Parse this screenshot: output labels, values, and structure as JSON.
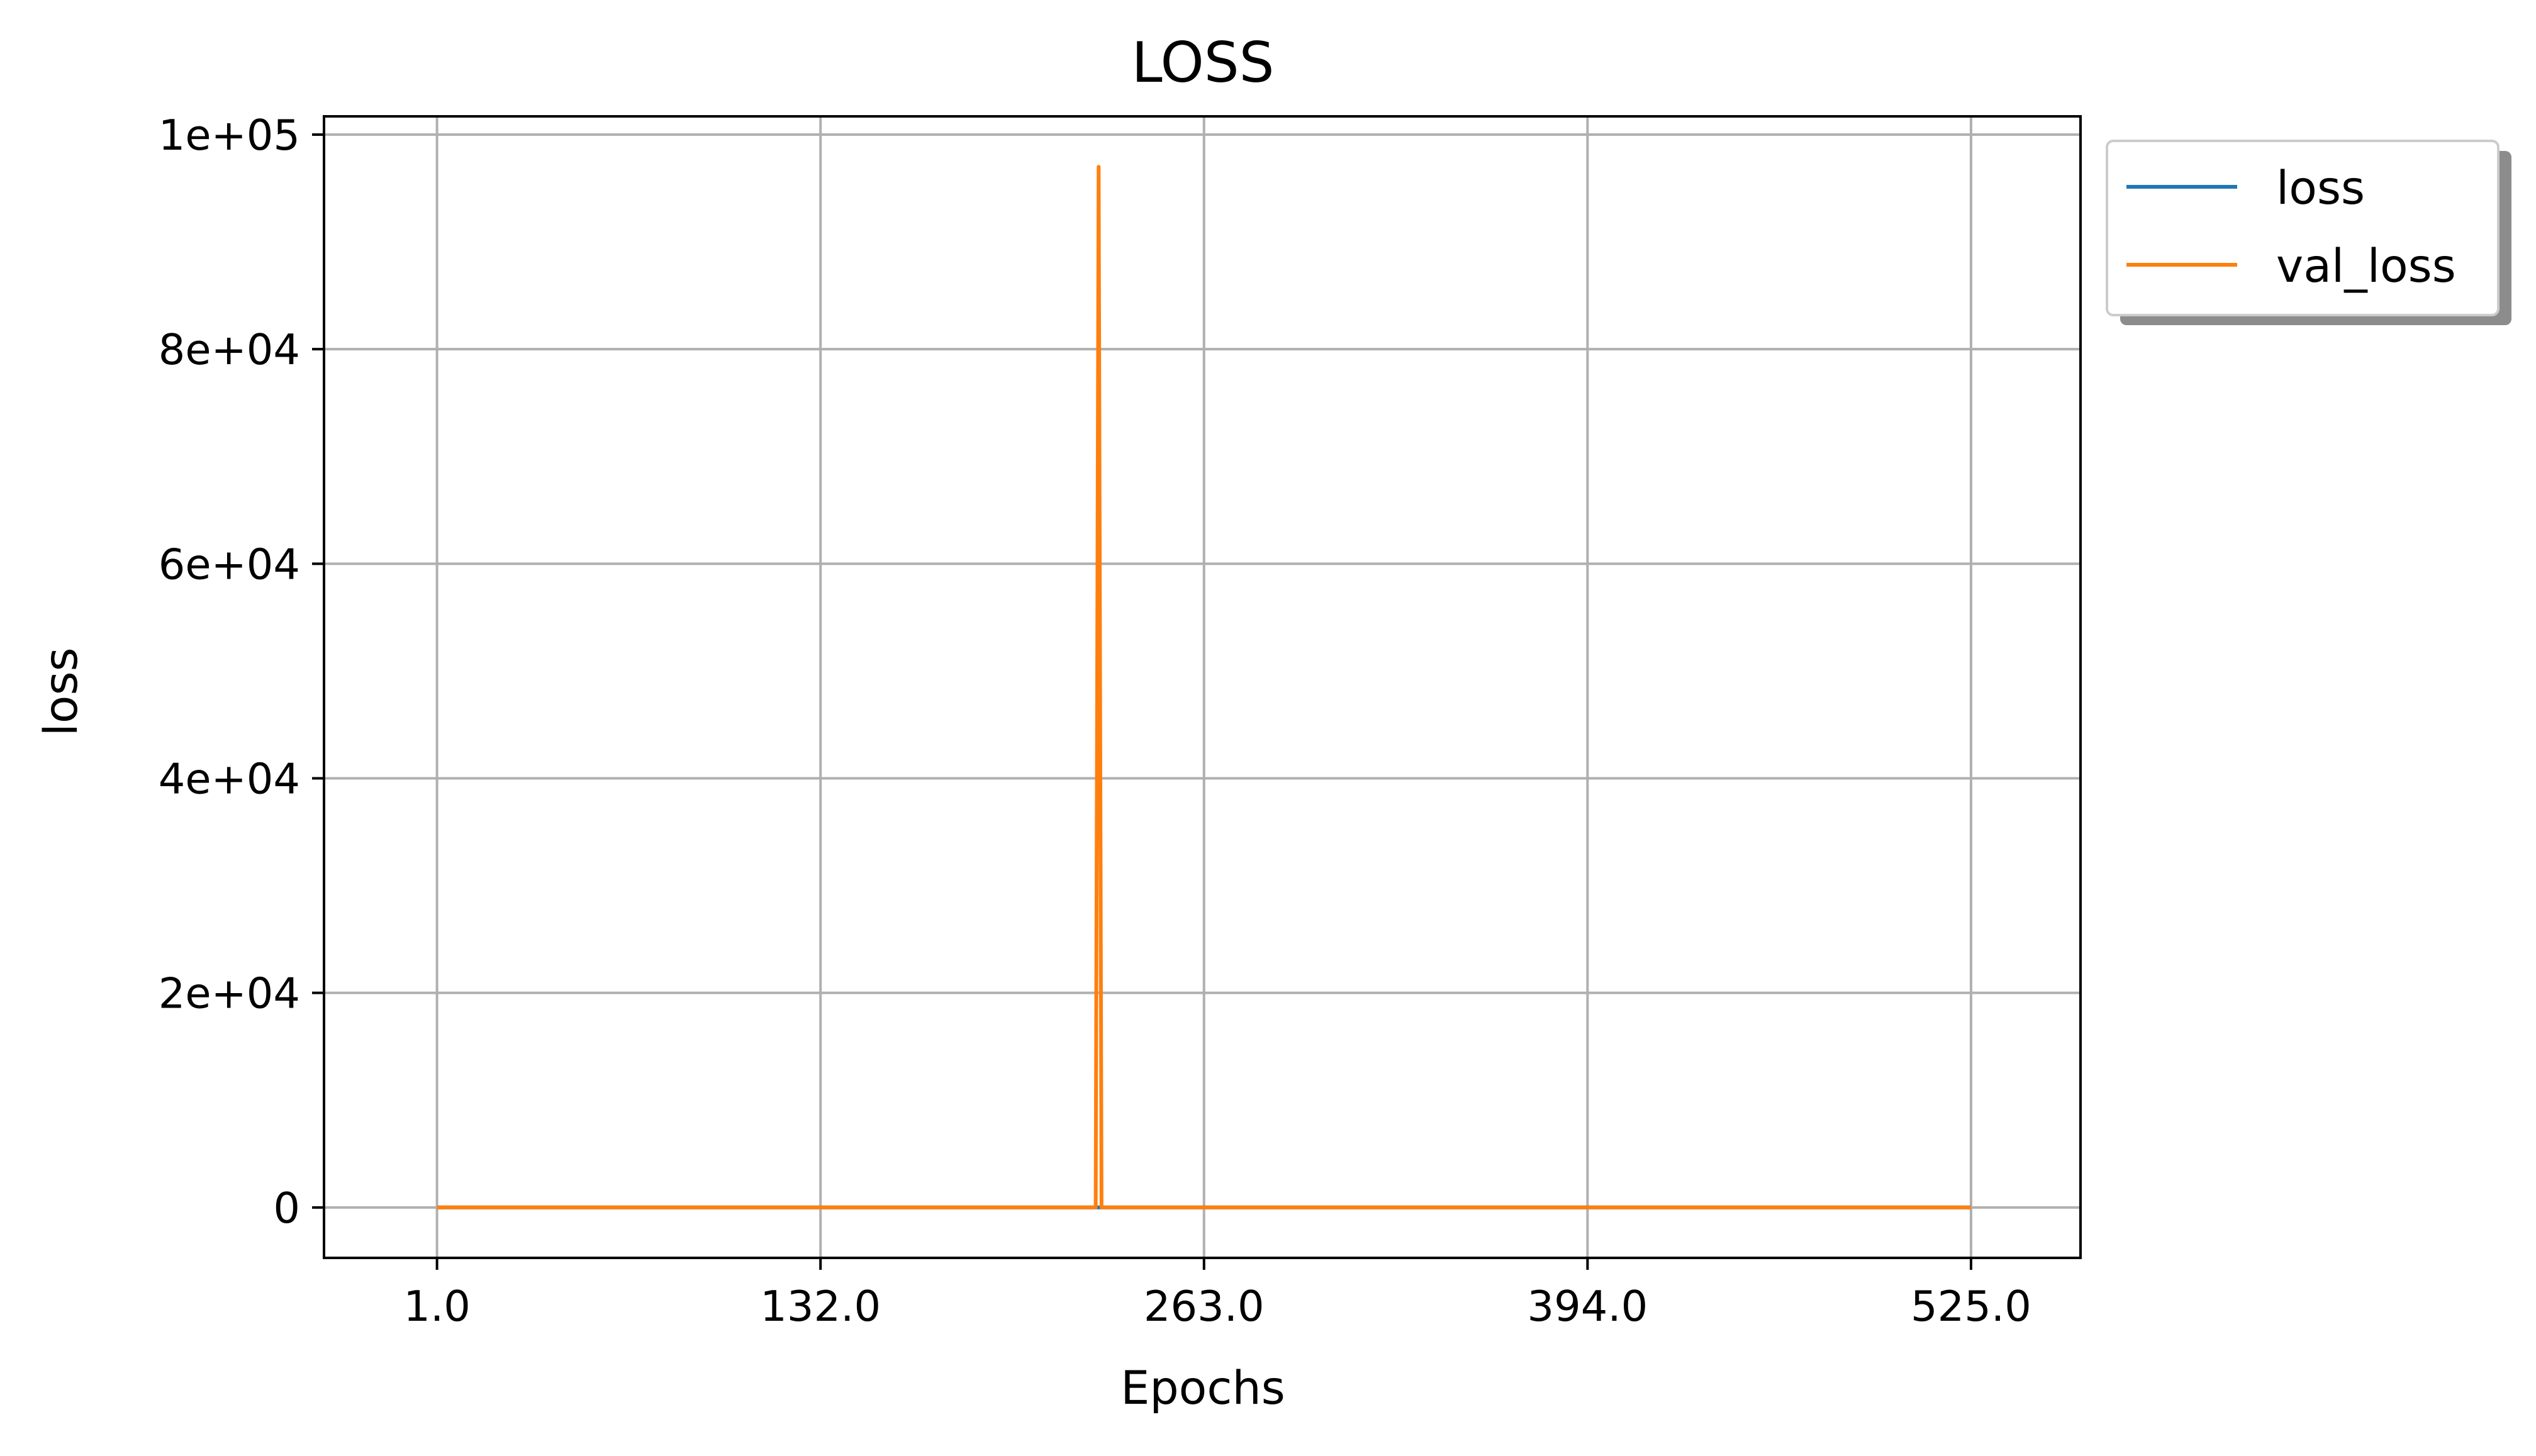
{
  "chart_data": {
    "type": "line",
    "title": "LOSS",
    "xlabel": "Epochs",
    "ylabel": "loss",
    "xlim": [
      -37.6,
      562.4
    ],
    "ylim": [
      -4700,
      101700
    ],
    "x_ticks": [
      1.0,
      132.0,
      263.0,
      394.0,
      525.0
    ],
    "x_tick_labels": [
      "1.0",
      "132.0",
      "263.0",
      "394.0",
      "525.0"
    ],
    "y_ticks": [
      0,
      20000,
      40000,
      60000,
      80000,
      100000
    ],
    "y_tick_labels": [
      "0",
      "2e+04",
      "4e+04",
      "6e+04",
      "8e+04",
      "1e+05"
    ],
    "grid": true,
    "legend_position": "outside-top-right",
    "series": [
      {
        "name": "loss",
        "color": "#1f77b4",
        "x": [
          1,
          525
        ],
        "values": [
          0,
          0
        ]
      },
      {
        "name": "val_loss",
        "color": "#ff7f0e",
        "x": [
          1,
          226,
          227,
          228,
          525
        ],
        "values": [
          0,
          0,
          97000,
          0,
          0
        ]
      }
    ]
  }
}
